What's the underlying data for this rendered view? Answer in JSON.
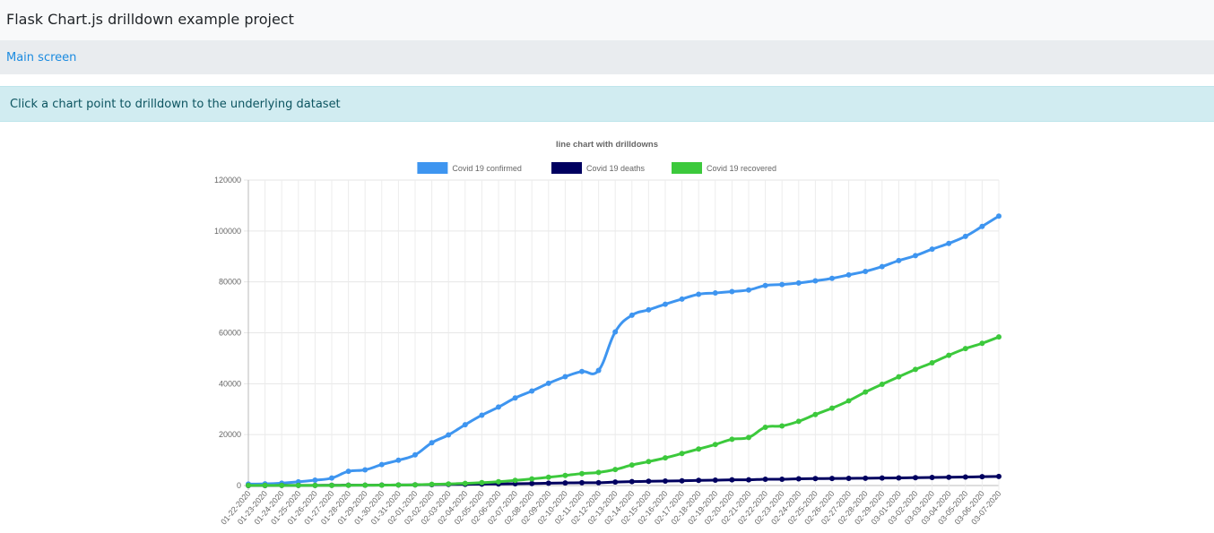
{
  "app": {
    "title": "Flask Chart.js drilldown example project"
  },
  "breadcrumb": {
    "link_label": "Main screen"
  },
  "alert": {
    "message": "Click a chart point to drilldown to the underlying dataset"
  },
  "chart_data": {
    "type": "line",
    "title": "line chart with drilldowns",
    "legend_position": "top",
    "ylim": [
      0,
      120000
    ],
    "yticks": [
      0,
      20000,
      40000,
      60000,
      80000,
      100000,
      120000
    ],
    "grid": true,
    "x": [
      "01-22-2020",
      "01-23-2020",
      "01-24-2020",
      "01-25-2020",
      "01-26-2020",
      "01-27-2020",
      "01-28-2020",
      "01-29-2020",
      "01-30-2020",
      "01-31-2020",
      "02-01-2020",
      "02-02-2020",
      "02-03-2020",
      "02-04-2020",
      "02-05-2020",
      "02-06-2020",
      "02-07-2020",
      "02-08-2020",
      "02-09-2020",
      "02-10-2020",
      "02-11-2020",
      "02-12-2020",
      "02-13-2020",
      "02-14-2020",
      "02-15-2020",
      "02-16-2020",
      "02-17-2020",
      "02-18-2020",
      "02-19-2020",
      "02-20-2020",
      "02-21-2020",
      "02-22-2020",
      "02-23-2020",
      "02-24-2020",
      "02-25-2020",
      "02-26-2020",
      "02-27-2020",
      "02-28-2020",
      "02-29-2020",
      "03-01-2020",
      "03-02-2020",
      "03-03-2020",
      "03-04-2020",
      "03-05-2020",
      "03-06-2020",
      "03-07-2020"
    ],
    "series": [
      {
        "name": "Covid 19 confirmed",
        "color": "#3e95f0",
        "values": [
          555,
          654,
          941,
          1434,
          2118,
          2927,
          5578,
          6166,
          8234,
          9927,
          12038,
          16787,
          19881,
          23892,
          27635,
          30817,
          34391,
          37120,
          40150,
          42762,
          44802,
          45221,
          60368,
          66885,
          69030,
          71224,
          73258,
          75136,
          75639,
          76197,
          76819,
          78572,
          78958,
          79561,
          80406,
          81388,
          82746,
          84112,
          86011,
          88369,
          90306,
          92840,
          95120,
          97886,
          101801,
          105847
        ]
      },
      {
        "name": "Covid 19 deaths",
        "color": "#000060",
        "values": [
          17,
          18,
          26,
          42,
          56,
          82,
          131,
          133,
          171,
          213,
          259,
          362,
          426,
          492,
          564,
          634,
          719,
          806,
          906,
          1013,
          1113,
          1118,
          1371,
          1523,
          1666,
          1770,
          1868,
          2007,
          2122,
          2247,
          2251,
          2458,
          2469,
          2629,
          2708,
          2770,
          2814,
          2872,
          2941,
          2996,
          3085,
          3160,
          3254,
          3348,
          3460,
          3558
        ]
      },
      {
        "name": "Covid 19 recovered",
        "color": "#3cc93c",
        "values": [
          28,
          30,
          36,
          39,
          52,
          61,
          107,
          126,
          143,
          222,
          284,
          472,
          623,
          852,
          1124,
          1487,
          2011,
          2616,
          3244,
          3946,
          4683,
          5150,
          6295,
          8058,
          9395,
          10865,
          12583,
          14352,
          16121,
          18177,
          18890,
          22886,
          23394,
          25227,
          27905,
          30384,
          33277,
          36711,
          39782,
          42716,
          45602,
          48229,
          51170,
          53796,
          55865,
          58358
        ]
      }
    ]
  }
}
